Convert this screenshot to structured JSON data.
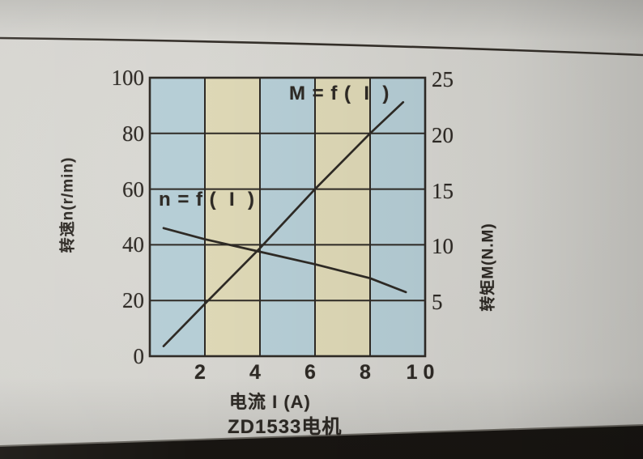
{
  "colors": {
    "band_blue": "#b6ced6",
    "band_cream": "#ded8b6",
    "ink": "#2e2a25",
    "page": "#d4d3ce",
    "photo_edge_dark": "#1a1713",
    "rule_line": "#35302a"
  },
  "chart_data": {
    "type": "line",
    "title": "ZD1533电机",
    "xlabel": "电流 I (A)",
    "ylabel_left": "转速n(r/min)",
    "ylabel_right": "转矩M(N.M)",
    "xlim": [
      0,
      10
    ],
    "ylim_left": [
      0,
      100
    ],
    "ylim_right": [
      0,
      25
    ],
    "x_tick_values": [
      2,
      4,
      6,
      8,
      10
    ],
    "x_tick_labels": [
      "2",
      "4",
      "6",
      "8",
      "1 0"
    ],
    "left_tick_values": [
      0,
      20,
      40,
      60,
      80,
      100
    ],
    "right_tick_values": [
      5,
      10,
      15,
      20,
      25
    ],
    "grid": true,
    "legend_position": "inline-labels",
    "band_order": [
      "blue",
      "cream",
      "blue",
      "cream",
      "blue"
    ],
    "series": [
      {
        "name": "M = f (  I  )",
        "axis": "right",
        "unit": "N.M",
        "x": [
          0.5,
          2,
          4,
          6,
          8,
          9.2
        ],
        "y": [
          0.9,
          4.7,
          9.7,
          15,
          20,
          22.8
        ]
      },
      {
        "name": "n = f (  I  )",
        "axis": "left",
        "unit": "r/min",
        "x": [
          0.5,
          2,
          4,
          6,
          8,
          9.3
        ],
        "y": [
          46,
          42,
          37.5,
          33,
          28,
          23
        ]
      }
    ]
  }
}
